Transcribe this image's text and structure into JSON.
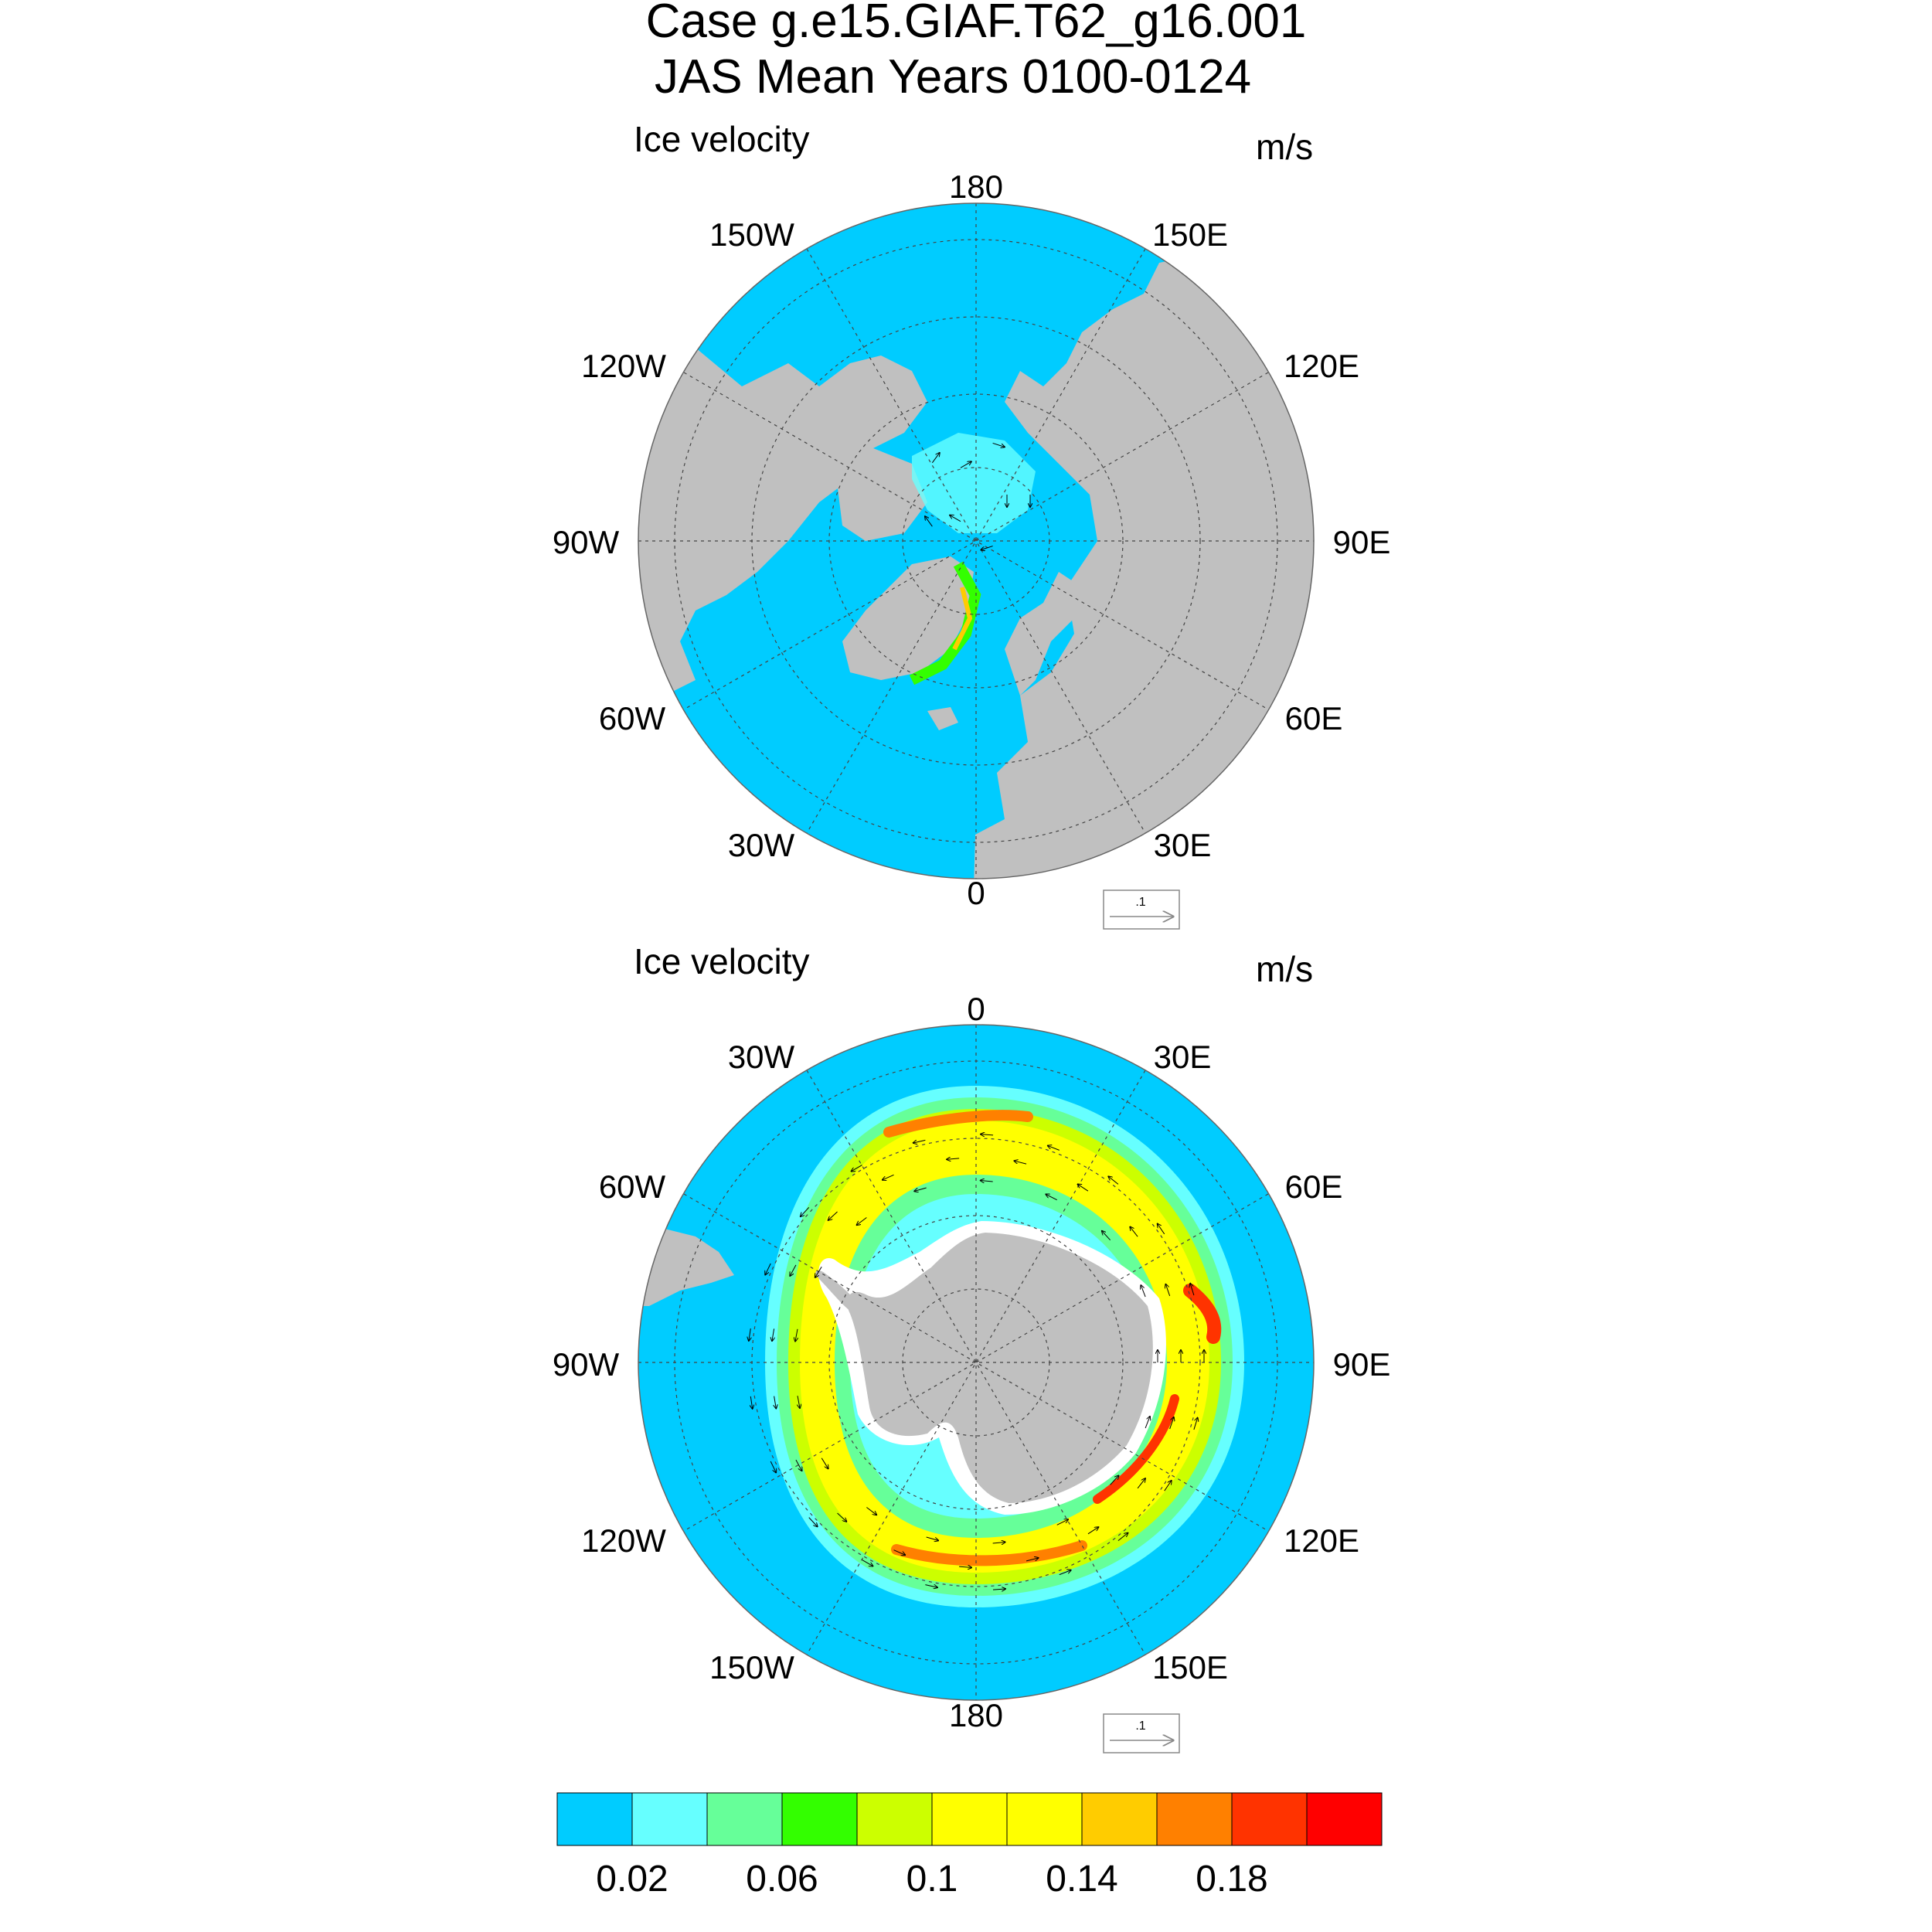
{
  "title": {
    "line1": "Case g.e15.GIAF.T62_g16.001",
    "line2": "JAS Mean   Years 0100-0124"
  },
  "panels": [
    {
      "id": "north",
      "left_label": "Ice velocity",
      "right_label": "m/s",
      "lon_labels": [
        "180",
        "150E",
        "120E",
        "90E",
        "60E",
        "30E",
        "0",
        "30W",
        "60W",
        "90W",
        "120W",
        "150W"
      ],
      "ref_vector_label": ".1"
    },
    {
      "id": "south",
      "left_label": "Ice velocity",
      "right_label": "m/s",
      "lon_labels": [
        "0",
        "30E",
        "60E",
        "90E",
        "120E",
        "150E",
        "180",
        "150W",
        "120W",
        "90W",
        "60W",
        "30W"
      ],
      "ref_vector_label": ".1"
    }
  ],
  "colorbar": {
    "colors": [
      "#00ccff",
      "#66ffff",
      "#66ff99",
      "#33ff00",
      "#ccff00",
      "#ffff00",
      "#ffff00",
      "#ffcc00",
      "#ff8000",
      "#ff3300",
      "#ff0000"
    ],
    "tick_labels": [
      "0.02",
      "0.06",
      "0.1",
      "0.14",
      "0.18"
    ]
  },
  "colors": {
    "ocean": "#00ccff",
    "land": "#c0c0c0",
    "ice_shelf": "#ffffff"
  },
  "chart_data": {
    "type": "heatmap",
    "title": "Ice velocity",
    "units": "m/s",
    "projection": "polar stereographic",
    "color_levels": [
      0.02,
      0.04,
      0.06,
      0.08,
      0.1,
      0.12,
      0.14,
      0.16,
      0.18,
      0.2
    ],
    "colorbar_ticks": [
      0.02,
      0.06,
      0.1,
      0.14,
      0.18
    ],
    "reference_vector": 0.1
  }
}
